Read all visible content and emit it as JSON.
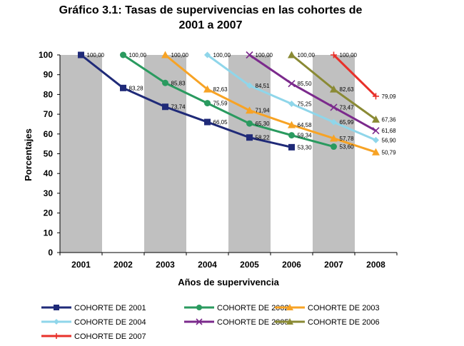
{
  "chart_data": {
    "type": "line",
    "title": [
      "Gráfico 3.1: Tasas de supervivencias en las cohortes de",
      "2001 a 2007"
    ],
    "xlabel": "Años de supervivencia",
    "ylabel": "Porcentajes",
    "categories": [
      "2001",
      "2002",
      "2003",
      "2004",
      "2005",
      "2006",
      "2007",
      "2008"
    ],
    "ylim": [
      0,
      100
    ],
    "yticks": [
      "0",
      "10",
      "20",
      "30",
      "40",
      "50",
      "60",
      "70",
      "80",
      "90",
      "100"
    ],
    "legend_position": "bottom",
    "band_color": "#c0c0c0",
    "series": [
      {
        "name": "COHORTE DE 2001",
        "color": "#1f2a78",
        "marker": "square",
        "values": [
          100,
          83.28,
          73.74,
          66.05,
          58.22,
          53.3,
          null,
          null
        ],
        "labels": [
          "100,00",
          "83,28",
          "73,74",
          "66,05",
          "58,22",
          "53,30",
          null,
          null
        ]
      },
      {
        "name": "COHORTE DE 2002",
        "color": "#2a9a5f",
        "marker": "circle",
        "values": [
          null,
          100,
          85.83,
          75.59,
          65.3,
          59.34,
          53.6,
          null
        ],
        "labels": [
          null,
          "100,00",
          "85,83",
          "75,59",
          "65,30",
          "59,34",
          "53,60",
          null
        ]
      },
      {
        "name": "COHORTE DE 2003",
        "color": "#f7a325",
        "marker": "triangle",
        "values": [
          null,
          null,
          100,
          82.63,
          71.94,
          64.58,
          57.78,
          50.79
        ],
        "labels": [
          null,
          null,
          "100,00",
          "82,63",
          "71,94",
          "64,58",
          "57,78",
          "50,79"
        ]
      },
      {
        "name": "COHORTE DE 2004",
        "color": "#8fd6ea",
        "marker": "diamond",
        "values": [
          null,
          null,
          null,
          100,
          84.51,
          75.25,
          65.99,
          56.9
        ],
        "labels": [
          null,
          null,
          null,
          "100,00",
          "84,51",
          "75,25",
          "65,99",
          "56,90"
        ]
      },
      {
        "name": "COHORTE DE 2005",
        "color": "#7b2a8c",
        "marker": "x",
        "values": [
          null,
          null,
          null,
          null,
          100,
          85.5,
          73.47,
          61.68
        ],
        "labels": [
          null,
          null,
          null,
          null,
          "100,00",
          "85,50",
          "73,47",
          "61,68"
        ]
      },
      {
        "name": "COHORTE DE 2006",
        "color": "#8a8a34",
        "marker": "triangle",
        "values": [
          null,
          null,
          null,
          null,
          null,
          100,
          82.63,
          67.36
        ],
        "labels": [
          null,
          null,
          null,
          null,
          null,
          "100,00",
          "82,63",
          "67,36"
        ]
      },
      {
        "name": "COHORTE DE 2007",
        "color": "#e8312a",
        "marker": "plus",
        "values": [
          null,
          null,
          null,
          null,
          null,
          null,
          100,
          79.09
        ],
        "labels": [
          null,
          null,
          null,
          null,
          null,
          null,
          "100,00",
          "79,09"
        ]
      }
    ]
  }
}
